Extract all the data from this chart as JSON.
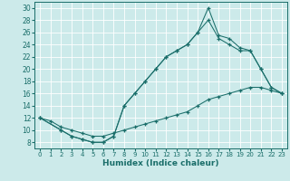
{
  "bg_color": "#cceaea",
  "line_color": "#1a6e6a",
  "xlabel": "Humidex (Indice chaleur)",
  "xlim": [
    -0.5,
    23.5
  ],
  "ylim": [
    7,
    31
  ],
  "xticks": [
    0,
    1,
    2,
    3,
    4,
    5,
    6,
    7,
    8,
    9,
    10,
    11,
    12,
    13,
    14,
    15,
    16,
    17,
    18,
    19,
    20,
    21,
    22,
    23
  ],
  "yticks": [
    8,
    10,
    12,
    14,
    16,
    18,
    20,
    22,
    24,
    26,
    28,
    30
  ],
  "line1_x": [
    0,
    1,
    2,
    3,
    4,
    5,
    6,
    7,
    8,
    9,
    10,
    11,
    12,
    13,
    14,
    15,
    16,
    17,
    18,
    19,
    20,
    21,
    22,
    23
  ],
  "line1_y": [
    12,
    11.5,
    10.5,
    10,
    9.5,
    9,
    9,
    9.5,
    10,
    10.5,
    11,
    11.5,
    12,
    12.5,
    13,
    14,
    15,
    15.5,
    16,
    16.5,
    17,
    17,
    16.5,
    16
  ],
  "line2_x": [
    0,
    2,
    3,
    4,
    5,
    6,
    7,
    8,
    9,
    10,
    11,
    12,
    13,
    14,
    15,
    16,
    17,
    18,
    19,
    20,
    21,
    22,
    23
  ],
  "line2_y": [
    12,
    10,
    9,
    8.5,
    8,
    8,
    9,
    14,
    16,
    18,
    20,
    22,
    23,
    24,
    26,
    28,
    25,
    24,
    23,
    23,
    20,
    17,
    16
  ],
  "line3_x": [
    0,
    2,
    3,
    4,
    5,
    6,
    7,
    8,
    9,
    10,
    11,
    12,
    13,
    14,
    15,
    16,
    17,
    18,
    19,
    20,
    21,
    22,
    23
  ],
  "line3_y": [
    12,
    10,
    9,
    8.5,
    8,
    8,
    9,
    14,
    16,
    18,
    20,
    22,
    23,
    24,
    26,
    30,
    25.5,
    25,
    23.5,
    23,
    20,
    17,
    16
  ]
}
